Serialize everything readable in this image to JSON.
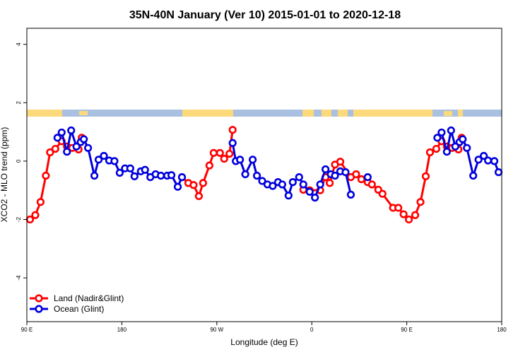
{
  "chart_data": {
    "type": "line",
    "title": "35N-40N January (Ver 10)   2015-01-01 to 2020-12-18",
    "x_label": "Longitude (deg E)",
    "y_label": "XCO2 - MLO trend (ppm)",
    "xlim": [
      90,
      540
    ],
    "ylim": [
      -5.5,
      4.55
    ],
    "xticks": [
      {
        "value": 90,
        "label": "90 E"
      },
      180,
      {
        "value": 270,
        "label": "90 W"
      },
      {
        "value": 360,
        "label": "0"
      },
      {
        "value": 450,
        "label": "90 E"
      },
      {
        "value": 540,
        "label": "180"
      }
    ],
    "yticks": [
      -4,
      -2,
      0,
      2,
      4
    ],
    "grid": false,
    "legend": "bottom-left",
    "series": [
      {
        "name": "Land (Nadir&Glint)",
        "color": "#ff0000",
        "x": [
          93,
          98,
          103,
          108,
          112,
          117,
          123,
          128,
          133,
          139,
          142,
          null,
          237,
          243,
          248,
          253,
          257,
          263,
          267,
          273,
          277,
          282,
          285,
          null,
          352,
          358,
          368,
          373,
          377,
          382,
          387,
          397,
          402,
          407,
          413,
          417,
          423,
          427,
          437,
          442,
          447,
          452,
          458,
          463,
          468,
          472,
          478,
          483,
          488,
          493,
          499,
          502
        ],
        "values": [
          -2.0,
          -1.85,
          -1.4,
          -0.5,
          0.3,
          0.42,
          0.68,
          0.5,
          0.45,
          0.4,
          0.8,
          null,
          -0.55,
          -0.75,
          -0.82,
          -1.2,
          -0.75,
          -0.15,
          0.28,
          0.28,
          0.08,
          0.25,
          1.07,
          null,
          -0.98,
          -1.0,
          -1.0,
          -0.55,
          -0.75,
          -0.12,
          -0.02,
          -0.55,
          -0.45,
          -0.62,
          -0.72,
          -0.8,
          -0.98,
          -1.12,
          -1.6,
          -1.6,
          -1.82,
          -2.0,
          -1.85,
          -1.4,
          -0.52,
          0.3,
          0.42,
          0.68,
          0.5,
          0.45,
          0.4,
          0.8
        ]
      },
      {
        "name": "Ocean (Glint)",
        "color": "#0000dd",
        "x": [
          119,
          123,
          128,
          132,
          137,
          141,
          144,
          148,
          154,
          158,
          163,
          168,
          173,
          178,
          183,
          188,
          192,
          198,
          202,
          207,
          212,
          217,
          223,
          227,
          233,
          237,
          null,
          285,
          288,
          292,
          297,
          304,
          308,
          313,
          318,
          323,
          328,
          332,
          338,
          342,
          348,
          352,
          358,
          363,
          368,
          373,
          378,
          382,
          387,
          392,
          397,
          null,
          413,
          null,
          479,
          483,
          488,
          492,
          496,
          500,
          503,
          507,
          513,
          518,
          523,
          527,
          533,
          537
        ],
        "values": [
          0.8,
          0.98,
          0.32,
          1.05,
          0.5,
          0.65,
          0.75,
          0.45,
          -0.5,
          0.05,
          0.18,
          0.02,
          0.0,
          -0.4,
          -0.25,
          -0.25,
          -0.52,
          -0.35,
          -0.3,
          -0.55,
          -0.45,
          -0.5,
          -0.5,
          -0.48,
          -0.88,
          -0.55,
          null,
          0.62,
          0.0,
          0.05,
          -0.45,
          0.05,
          -0.5,
          -0.68,
          -0.8,
          -0.85,
          -0.72,
          -0.8,
          -1.18,
          -0.72,
          -0.55,
          -0.8,
          -1.05,
          -1.25,
          -0.8,
          -0.28,
          -0.45,
          -0.5,
          -0.35,
          -0.38,
          -1.15,
          null,
          -0.55,
          null,
          0.8,
          0.98,
          0.32,
          1.05,
          0.5,
          0.65,
          0.75,
          0.45,
          -0.5,
          0.05,
          0.18,
          0.02,
          0.0,
          -0.38
        ]
      }
    ]
  }
}
